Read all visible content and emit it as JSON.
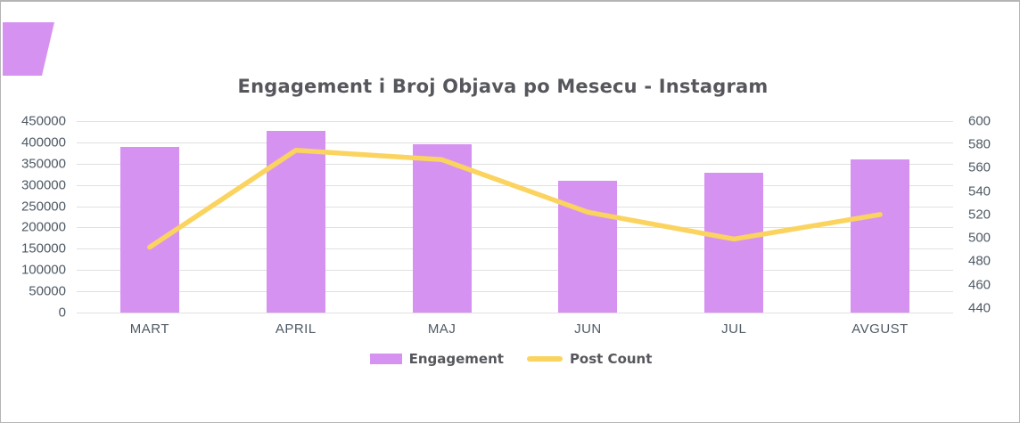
{
  "page": {
    "background": "#ffffff",
    "border_color": "#b5b5b5"
  },
  "brand_mark": {
    "color": "#d692f1"
  },
  "chart_data": {
    "type": "combo_bar_line",
    "title": "Engagement i Broj Objava po Mesecu - Instagram",
    "categories": [
      "MART",
      "APRIL",
      "MAJ",
      "JUN",
      "JUL",
      "AVGUST"
    ],
    "series": [
      {
        "name": "Engagement",
        "type": "bar",
        "axis": "left",
        "color": "#d692f1",
        "values": [
          390000,
          426000,
          396000,
          309000,
          328000,
          361000
        ]
      },
      {
        "name": "Post Count",
        "type": "line",
        "axis": "right",
        "color": "#fbd35f",
        "values": [
          492,
          575,
          567,
          522,
          499,
          520
        ]
      }
    ],
    "left_axis": {
      "ylim": [
        0,
        450000
      ],
      "tick_step": 50000,
      "tick_labels": [
        "450000",
        "400000",
        "350000",
        "300000",
        "250000",
        "200000",
        "150000",
        "100000",
        "50000",
        "0"
      ]
    },
    "right_axis": {
      "ylim": [
        436,
        600
      ],
      "tick_step": 20,
      "tick_labels": [
        "600",
        "580",
        "560",
        "540",
        "520",
        "500",
        "480",
        "460",
        "440"
      ]
    },
    "grid": "horizontal",
    "legend_position": "bottom"
  },
  "legend": {
    "items": [
      {
        "label": "Engagement",
        "color": "#d692f1",
        "shape": "rect"
      },
      {
        "label": "Post Count",
        "color": "#fbd35f",
        "shape": "line"
      }
    ]
  },
  "style": {
    "grid_color": "#e0e0e0",
    "tick_text_color": "#4e5964",
    "title_text_color": "#56575c"
  }
}
